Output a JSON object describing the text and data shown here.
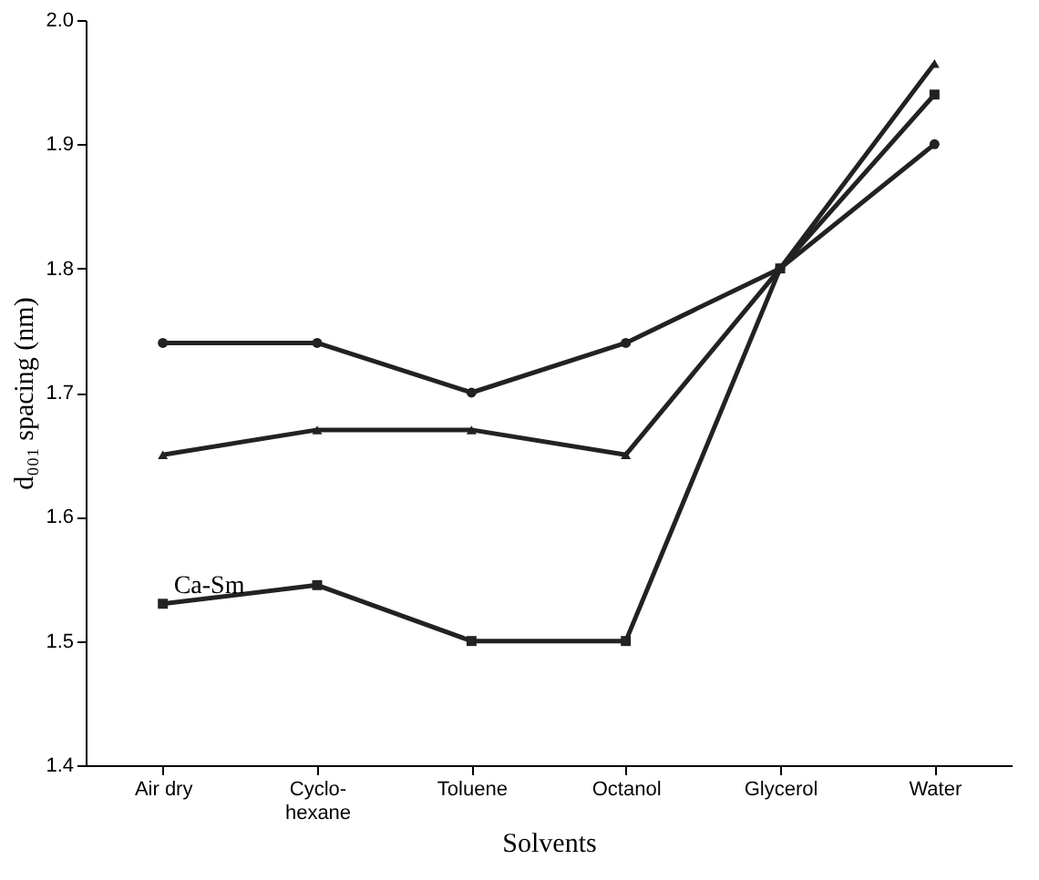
{
  "chart_data": {
    "type": "line",
    "xlabel": "Solvents",
    "ylabel": "d₀₀₁ spacing (nm)",
    "categories": [
      "Air dry",
      "Cyclo-\nhexane",
      "Toluene",
      "Octanol",
      "Glycerol",
      "Water"
    ],
    "series": [
      {
        "color": "#222222",
        "marker": "circle",
        "values": [
          1.74,
          1.74,
          1.7,
          1.74,
          1.8,
          1.9
        ]
      },
      {
        "color": "#222222",
        "marker": "triangle",
        "values": [
          1.65,
          1.67,
          1.67,
          1.65,
          1.8,
          1.965
        ]
      },
      {
        "name": "Ca-Sm",
        "color": "#222222",
        "marker": "square",
        "values": [
          1.53,
          1.545,
          1.5,
          1.5,
          1.8,
          1.94
        ]
      }
    ],
    "ylim": [
      1.4,
      2.0
    ],
    "yticks": [
      {
        "value": 1.4,
        "label": "1.4"
      },
      {
        "value": 1.5,
        "label": "1.5"
      },
      {
        "value": 1.6,
        "label": "1.6"
      },
      {
        "value": 1.7,
        "label": "1.7"
      },
      {
        "value": 1.8,
        "label": "1.8"
      },
      {
        "value": 1.9,
        "label": "1.9"
      },
      {
        "value": 2.0,
        "label": "2.0"
      }
    ],
    "grid": false,
    "line_style": "solid"
  }
}
